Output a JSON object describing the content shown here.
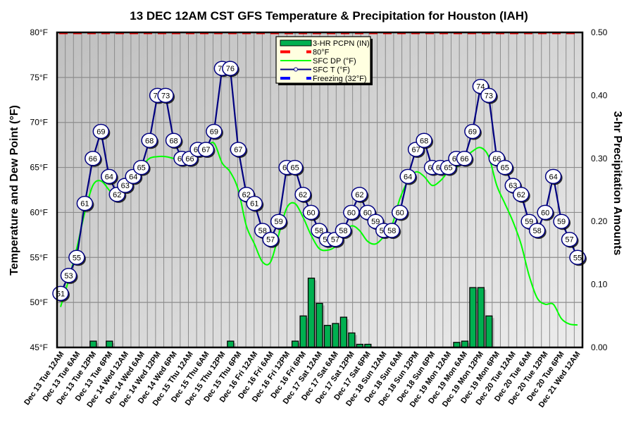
{
  "chart_data": {
    "type": "line",
    "title": "13 DEC 12AM CST GFS Temperature & Precipitation for Houston (IAH)",
    "ylabel": "Temperature and Dew Point (°F)",
    "y2label": "3-hr Precipitation Amounts",
    "ylim": [
      45,
      80
    ],
    "y2lim": [
      0,
      0.5
    ],
    "yticks": [
      "45°F",
      "50°F",
      "55°F",
      "60°F",
      "65°F",
      "70°F",
      "75°F",
      "80°F"
    ],
    "y2ticks": [
      "0.00",
      "0.10",
      "0.20",
      "0.30",
      "0.40",
      "0.50"
    ],
    "grid": true,
    "legend_position": "top-center",
    "legend": [
      {
        "label": "3-HR PCPN  (IN)",
        "kind": "bar",
        "color": "#00b050"
      },
      {
        "label": "80°F",
        "kind": "dash",
        "color": "#ff0000"
      },
      {
        "label": "SFC DP (°F)",
        "kind": "line",
        "color": "#00ff00"
      },
      {
        "label": "SFC T (°F)",
        "kind": "line-marker",
        "color": "#000080"
      },
      {
        "label": "Freezing (32°F)",
        "kind": "dash",
        "color": "#0000ff"
      }
    ],
    "x_tick_labels": [
      "Dec 13 Tue 12AM",
      "Dec 13 Tue 6AM",
      "Dec 13 Tue 12PM",
      "Dec 13 Tue 6PM",
      "Dec 14 Wed 12AM",
      "Dec 14 Wed 6AM",
      "Dec 14 Wed 12PM",
      "Dec 14 Wed 6PM",
      "Dec 15 Thu 12AM",
      "Dec 15 Thu 6AM",
      "Dec 15 Thu 12PM",
      "Dec 15 Thu 6PM",
      "Dec 16 Fri 12AM",
      "Dec 16 Fri 6AM",
      "Dec 16 Fri 12PM",
      "Dec 16 Fri 6PM",
      "Dec 17 Sat 12AM",
      "Dec 17 Sat 6AM",
      "Dec 17 Sat 12PM",
      "Dec 17 Sat 6PM",
      "Dec 18 Sun 12AM",
      "Dec 18 Sun 6AM",
      "Dec 18 Sun 12PM",
      "Dec 18 Sun 6PM",
      "Dec 19 Mon 12AM",
      "Dec 19 Mon 6AM",
      "Dec 19 Mon 12PM",
      "Dec 19 Mon 6PM",
      "Dec 20 Tue 12AM",
      "Dec 20 Tue 6AM",
      "Dec 20 Tue 12PM",
      "Dec 20 Tue 6PM",
      "Dec 21 Wed 12AM"
    ],
    "series": [
      {
        "name": "SFC T (°F)",
        "color": "#000080",
        "values": [
          51,
          53,
          55,
          61,
          66,
          69,
          64,
          62,
          63,
          64,
          65,
          68,
          73,
          73,
          68,
          66,
          66,
          67,
          67,
          69,
          76,
          76,
          67,
          62,
          61,
          58,
          57,
          59,
          65,
          65,
          62,
          60,
          58,
          57,
          57,
          58,
          60,
          62,
          60,
          59,
          58,
          58,
          60,
          64,
          67,
          68,
          65,
          65,
          65,
          66,
          66,
          69,
          74,
          73,
          66,
          65,
          63,
          62,
          59,
          58,
          60,
          64,
          59,
          57,
          55
        ]
      },
      {
        "name": "SFC DP (°F)",
        "color": "#00ff00",
        "values": [
          49.5,
          52.5,
          56,
          60,
          63,
          63.5,
          62.5,
          61.5,
          62.5,
          63.5,
          65,
          66,
          66.2,
          66.2,
          66,
          65.8,
          66.3,
          66.7,
          67.2,
          67.7,
          65.5,
          64.5,
          62.5,
          58.5,
          56.5,
          54.5,
          54.5,
          57.5,
          60.5,
          61,
          59.5,
          57.5,
          56,
          55.8,
          56.2,
          57.5,
          58.5,
          58,
          56.8,
          56.5,
          57.3,
          58.5,
          61.5,
          63.5,
          64.5,
          64,
          63,
          63.5,
          64.5,
          65,
          66,
          66.8,
          67.2,
          66.2,
          63,
          61,
          59,
          56.5,
          53,
          50.5,
          49.8,
          49.8,
          48.2,
          47.6,
          47.5
        ]
      },
      {
        "name": "3-HR PCPN (IN)",
        "type": "bar",
        "color": "#00b050",
        "values": [
          0,
          0,
          0,
          0,
          0.01,
          0,
          0.01,
          0,
          0,
          0,
          0,
          0,
          0,
          0,
          0,
          0,
          0,
          0,
          0,
          0,
          0,
          0.01,
          0,
          0,
          0,
          0,
          0,
          0,
          0,
          0.01,
          0.05,
          0.11,
          0.07,
          0.035,
          0.038,
          0.048,
          0.023,
          0.005,
          0.005,
          0,
          0,
          0,
          0,
          0,
          0,
          0,
          0,
          0,
          0,
          0.008,
          0.01,
          0.095,
          0.095,
          0.05,
          0,
          0,
          0,
          0,
          0,
          0,
          0,
          0,
          0,
          0,
          0
        ]
      },
      {
        "name": "80°F",
        "color": "#ff0000",
        "constant": 80
      }
    ]
  }
}
